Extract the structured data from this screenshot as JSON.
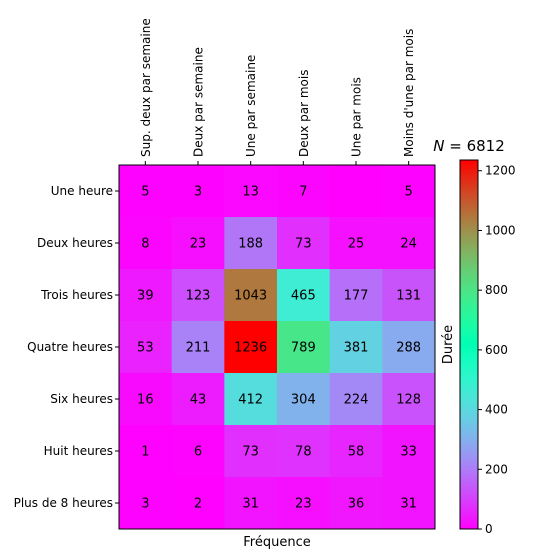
{
  "chart_data": {
    "type": "heatmap",
    "title": "N = 6812",
    "title_math": {
      "symbol": "N",
      "rest": " = 6812"
    },
    "xlabel": "Fréquence",
    "ylabel": "",
    "colorbar_label": "Durée",
    "x_categories": [
      "Sup. deux par semaine",
      "Deux par semaine",
      "Une par semaine",
      "Deux par mois",
      "Une par mois",
      "Moins d'une par mois"
    ],
    "y_categories": [
      "Une heure",
      "Deux heures",
      "Trois heures",
      "Quatre heures",
      "Six heures",
      "Huit heures",
      "Plus de 8 heures"
    ],
    "values": [
      [
        5,
        3,
        13,
        7,
        null,
        5
      ],
      [
        8,
        23,
        188,
        73,
        25,
        24
      ],
      [
        39,
        123,
        1043,
        465,
        177,
        131
      ],
      [
        53,
        211,
        1236,
        789,
        381,
        288
      ],
      [
        16,
        43,
        412,
        304,
        224,
        128
      ],
      [
        1,
        6,
        73,
        78,
        58,
        33
      ],
      [
        3,
        2,
        31,
        23,
        36,
        31
      ]
    ],
    "colormap": "rainbow",
    "color_range": [
      0,
      1236
    ],
    "colorbar_ticks": [
      0,
      200,
      400,
      600,
      800,
      1000,
      1200
    ]
  }
}
